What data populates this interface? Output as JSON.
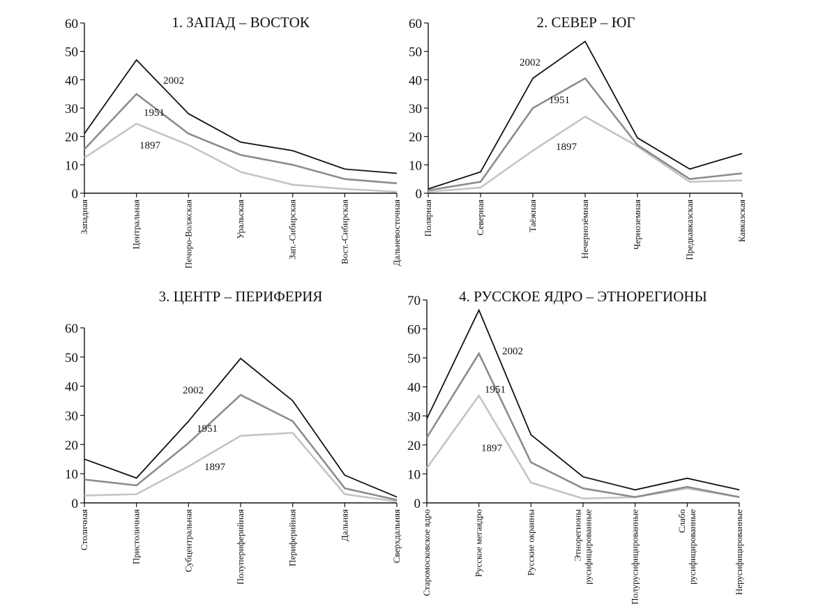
{
  "chart_data": [
    {
      "type": "line",
      "title": "1. ЗАПАД – ВОСТОК",
      "ylim": [
        0,
        60
      ],
      "yticks": [
        0,
        10,
        20,
        30,
        40,
        50,
        60
      ],
      "categories": [
        [
          "Западная"
        ],
        [
          "Центральная"
        ],
        [
          "Печоро-Волжская"
        ],
        [
          "Уральская"
        ],
        [
          "Зап.-Сибирская"
        ],
        [
          "Вост.-Сибирская"
        ],
        [
          "Дальневосточная"
        ]
      ],
      "series": [
        {
          "name": "2002",
          "values": [
            21,
            47,
            28,
            18,
            15,
            8.5,
            7
          ]
        },
        {
          "name": "1951",
          "values": [
            15.5,
            35,
            21,
            13.5,
            10,
            5,
            3.5
          ]
        },
        {
          "name": "1897",
          "values": [
            12.5,
            24.5,
            17,
            7.5,
            3,
            1.5,
            0.5
          ]
        }
      ],
      "labels": [
        "2002",
        "1951",
        "1897"
      ]
    },
    {
      "type": "line",
      "title": "2. СЕВЕР – ЮГ",
      "ylim": [
        0,
        60
      ],
      "yticks": [
        0,
        10,
        20,
        30,
        40,
        50,
        60
      ],
      "categories": [
        [
          "Полярная"
        ],
        [
          "Северная"
        ],
        [
          "Таёжная"
        ],
        [
          "Нечернозёмная"
        ],
        [
          "Черноземная"
        ],
        [
          "Предкавказская"
        ],
        [
          "Кавказская"
        ]
      ],
      "series": [
        {
          "name": "2002",
          "values": [
            1.5,
            7.5,
            40.5,
            53.5,
            19.5,
            8.5,
            14
          ]
        },
        {
          "name": "1951",
          "values": [
            1,
            4,
            30,
            40.5,
            17,
            5,
            7
          ]
        },
        {
          "name": "1897",
          "values": [
            0.5,
            2,
            15,
            27,
            16.5,
            4,
            4.5
          ]
        }
      ],
      "labels": [
        "2002",
        "1951",
        "1897"
      ]
    },
    {
      "type": "line",
      "title": "3. ЦЕНТР – ПЕРИФЕРИЯ",
      "ylim": [
        0,
        60
      ],
      "yticks": [
        0,
        10,
        20,
        30,
        40,
        50,
        60
      ],
      "categories": [
        [
          "Столичная"
        ],
        [
          "Пристоличная"
        ],
        [
          "Субцентральная"
        ],
        [
          "Полупериферийная"
        ],
        [
          "Периферийная"
        ],
        [
          "Дальняя"
        ],
        [
          "Сверхдальняя"
        ]
      ],
      "series": [
        {
          "name": "2002",
          "values": [
            15,
            8.5,
            28,
            49.5,
            35,
            9.5,
            2
          ]
        },
        {
          "name": "1951",
          "values": [
            8,
            6,
            20.5,
            37,
            28,
            5,
            1
          ]
        },
        {
          "name": "1897",
          "values": [
            2.5,
            3,
            12.5,
            23,
            24,
            3,
            0.5
          ]
        }
      ],
      "labels": [
        "2002",
        "1951",
        "1897"
      ]
    },
    {
      "type": "line",
      "title": "4. РУССКОЕ ЯДРО – ЭТНОРЕГИОНЫ",
      "ylim": [
        0,
        70
      ],
      "yticks": [
        0,
        10,
        20,
        30,
        40,
        50,
        60,
        70
      ],
      "categories": [
        [
          "Старомосковское ядро"
        ],
        [
          "Русское мегаядро"
        ],
        [
          "Русские окраины"
        ],
        [
          "Этнорегионы",
          "русифицированные"
        ],
        [
          "Полурусифицированные"
        ],
        [
          "Слабо",
          "русифицированные"
        ],
        [
          "Нерусифицированные"
        ]
      ],
      "series": [
        {
          "name": "2002",
          "values": [
            29,
            66.5,
            23.5,
            9,
            4.5,
            8.5,
            4.5
          ]
        },
        {
          "name": "1951",
          "values": [
            22.5,
            51.5,
            14,
            5,
            2,
            5.5,
            2
          ]
        },
        {
          "name": "1897",
          "values": [
            12,
            37,
            7,
            1.5,
            2,
            5,
            2
          ]
        }
      ],
      "labels": [
        "2002",
        "1951",
        "1897"
      ]
    }
  ],
  "colors": {
    "2002": "#111111",
    "1951": "#8c8c8c",
    "1897": "#c4c4c4"
  }
}
